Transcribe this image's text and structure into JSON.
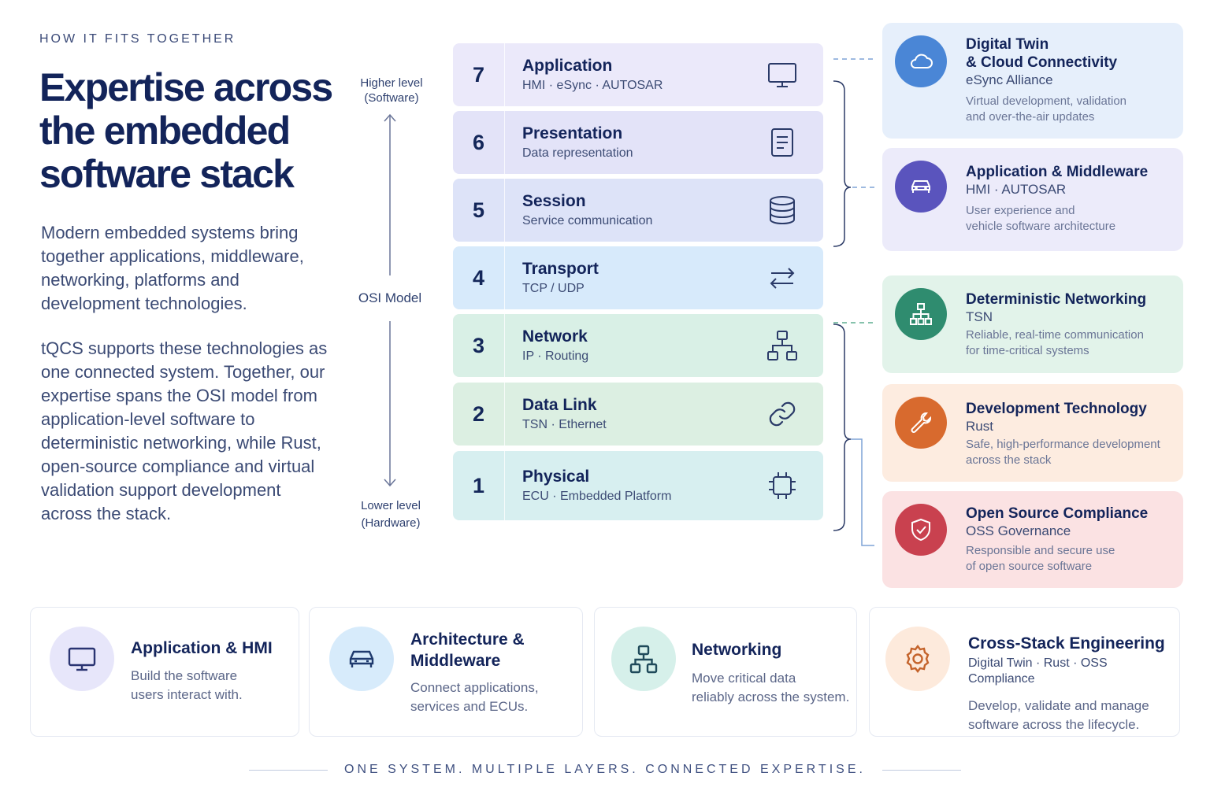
{
  "eyebrow": "HOW IT FITS TOGETHER",
  "title_lines": [
    "Expertise across",
    "the embedded",
    "software stack"
  ],
  "intro": "Modern embedded systems bring together applications, middleware, networking, platforms and development technologies.",
  "body": "tQCS supports these technologies as one connected system. Together, our expertise spans the OSI model from application-level software to deterministic networking, while Rust, open-source compliance and virtual validation support development across the stack.",
  "axis": {
    "top_line1": "Higher level",
    "top_line2": "(Software)",
    "middle": "OSI Model",
    "bottom_line1": "Lower level",
    "bottom_line2": "(Hardware)"
  },
  "layers": [
    {
      "num": "7",
      "name": "Application",
      "sub": "HMI · eSync · AUTOSAR",
      "icon": "monitor-icon",
      "color": "#ebe9fa"
    },
    {
      "num": "6",
      "name": "Presentation",
      "sub": "Data representation",
      "icon": "document-icon",
      "color": "#e3e3f8"
    },
    {
      "num": "5",
      "name": "Session",
      "sub": "Service communication",
      "icon": "database-icon",
      "color": "#dde3f8"
    },
    {
      "num": "4",
      "name": "Transport",
      "sub": "TCP / UDP",
      "icon": "transfer-arrows-icon",
      "color": "#d7eafb"
    },
    {
      "num": "3",
      "name": "Network",
      "sub": "IP · Routing",
      "icon": "network-icon",
      "color": "#d9f0e6"
    },
    {
      "num": "2",
      "name": "Data Link",
      "sub": "TSN · Ethernet",
      "icon": "link-icon",
      "color": "#dcefe2"
    },
    {
      "num": "1",
      "name": "Physical",
      "sub": "ECU · Embedded Platform",
      "icon": "chip-icon",
      "color": "#d7eff0"
    }
  ],
  "cards": [
    {
      "title_line1": "Digital Twin",
      "title_line2": "& Cloud Connectivity",
      "sub": "eSync Alliance",
      "desc_line1": "Virtual development, validation",
      "desc_line2": "and over-the-air updates",
      "icon": "cloud-icon",
      "accent": "#4a86d6",
      "bg": "#e6effb"
    },
    {
      "title_line1": "Application & Middleware",
      "sub": "HMI · AUTOSAR",
      "desc_line1": "User experience and",
      "desc_line2": "vehicle software architecture",
      "icon": "car-icon",
      "accent": "#5a54bd",
      "bg": "#ecebfa"
    },
    {
      "title_line1": "Deterministic Networking",
      "sub": "TSN",
      "desc_line1": "Reliable, real-time communication",
      "desc_line2": "for time-critical systems",
      "icon": "network-icon",
      "accent": "#2f8c6f",
      "bg": "#e2f3ea"
    },
    {
      "title_line1": "Development Technology",
      "sub": "Rust",
      "desc_line1": "Safe, high-performance development",
      "desc_line2": "across the stack",
      "icon": "wrench-icon",
      "accent": "#d86a2e",
      "bg": "#fdece0"
    },
    {
      "title_line1": "Open Source Compliance",
      "sub": "OSS Governance",
      "desc_line1": "Responsible and secure use",
      "desc_line2": "of open source software",
      "icon": "shield-check-icon",
      "accent": "#c9414f",
      "bg": "#fbe2e3"
    }
  ],
  "bottom": [
    {
      "title_line1": "Application & HMI",
      "desc_line1": "Build the software",
      "desc_line2": "users interact with.",
      "icon": "monitor-icon",
      "circle": "#e7e6fa",
      "color": "#2a3472"
    },
    {
      "title_line1": "Architecture &",
      "title_line2": "Middleware",
      "desc_line1": "Connect applications,",
      "desc_line2": "services and ECUs.",
      "icon": "car-icon",
      "circle": "#d7ebfb",
      "color": "#1f3a6e"
    },
    {
      "title_line1": "Networking",
      "desc_line1": "Move critical data",
      "desc_line2": "reliably across the system.",
      "icon": "network-icon",
      "circle": "#d6f0ea",
      "color": "#1f4a5a"
    },
    {
      "title_line1": "Cross-Stack Engineering",
      "sub": "Digital Twin · Rust · OSS Compliance",
      "desc_line1": "Develop, validate and manage",
      "desc_line2": "software across the lifecycle.",
      "icon": "gear-icon",
      "circle": "#fdeadc",
      "color": "#c4632b"
    }
  ],
  "footer": "ONE SYSTEM. MULTIPLE LAYERS. CONNECTED EXPERTISE."
}
